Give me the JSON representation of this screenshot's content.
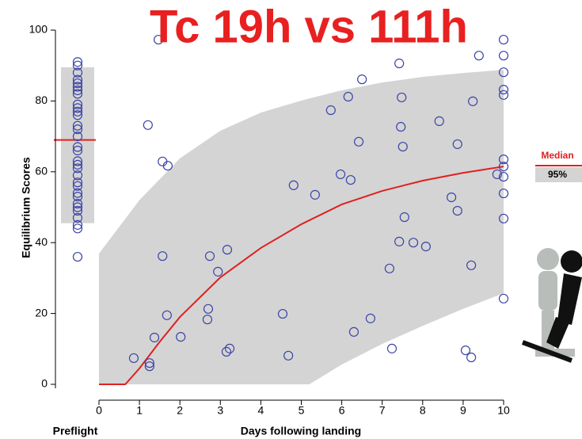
{
  "chart_data": {
    "type": "scatter",
    "title": "Tc 19h vs 111h",
    "x_label": "Days following landing",
    "y_label": "Equilibrium Scores",
    "xlim": [
      0,
      10
    ],
    "ylim": [
      0,
      100
    ],
    "xticks": [
      0,
      1,
      2,
      3,
      4,
      5,
      6,
      7,
      8,
      9,
      10
    ],
    "yticks": [
      0,
      20,
      40,
      60,
      80,
      100
    ],
    "point_color": "#3b44a6",
    "median_color": "#e02020",
    "band_color": "#d4d4d4",
    "preflight": {
      "label": "Preflight",
      "band": [
        45.5,
        89.5
      ],
      "median": 69,
      "values": [
        91,
        90,
        88,
        86,
        85,
        84,
        83,
        82,
        79,
        78,
        77,
        76,
        73,
        72,
        70,
        67,
        66,
        63,
        62,
        61,
        59,
        57,
        56,
        54,
        53,
        51,
        50,
        49,
        47,
        45,
        44,
        36
      ]
    },
    "series": [
      {
        "name": "Days following landing",
        "x": [
          1.47,
          1.21,
          1.57,
          1.7,
          1.57,
          0.86,
          1.25,
          1.25,
          1.37,
          1.68,
          2.02,
          2.74,
          2.94,
          3.17,
          2.7,
          2.68,
          3.23,
          3.15,
          4.54,
          4.68,
          4.81,
          5.34,
          5.73,
          6.16,
          6.5,
          6.42,
          5.97,
          6.22,
          6.3,
          6.71,
          7.18,
          7.24,
          7.42,
          7.48,
          7.46,
          7.51,
          7.55,
          7.42,
          7.77,
          8.08,
          8.41,
          8.71,
          8.86,
          8.86,
          9.24,
          9.39,
          9.2,
          9.06,
          9.2,
          9.84,
          10,
          10,
          10,
          10,
          10,
          10,
          10,
          10,
          10,
          10,
          10
        ],
        "values": [
          97.3,
          73.2,
          62.9,
          61.7,
          36.2,
          7.4,
          6,
          5.1,
          13.2,
          19.5,
          13.4,
          36.2,
          31.8,
          38,
          21.3,
          18.3,
          10.1,
          9.2,
          19.9,
          8.1,
          56.2,
          53.5,
          77.4,
          81.2,
          86.1,
          68.5,
          59.3,
          57.7,
          14.8,
          18.6,
          32.7,
          10.1,
          90.6,
          81,
          72.7,
          67.1,
          47.2,
          40.3,
          40,
          38.9,
          74.3,
          52.8,
          49,
          67.8,
          79.9,
          92.8,
          33.6,
          9.6,
          7.6,
          59.3,
          97.3,
          92.8,
          88.1,
          83.2,
          81.7,
          63.5,
          61.5,
          58.6,
          53.9,
          46.8,
          24.2
        ]
      }
    ],
    "median": {
      "name": "Median",
      "x": [
        0,
        0.65,
        1,
        1.5,
        2,
        3,
        4,
        5,
        6,
        7,
        8,
        9,
        10
      ],
      "values": [
        0,
        0,
        4.5,
        12,
        19,
        30.2,
        38.5,
        45.2,
        50.8,
        54.6,
        57.5,
        59.7,
        61.5
      ]
    },
    "band": {
      "name": "95%",
      "x": [
        0,
        1,
        2,
        3,
        4,
        5,
        5.2,
        6,
        7,
        8,
        9,
        10
      ],
      "upper": [
        36.9,
        52,
        63.8,
        71.6,
        76.7,
        80.1,
        80.7,
        83,
        85.2,
        86.8,
        87.9,
        88.8
      ],
      "lower": [
        0,
        0,
        0,
        0,
        0,
        0,
        0,
        5.6,
        11.4,
        16.5,
        21.3,
        25.7
      ]
    }
  }
}
